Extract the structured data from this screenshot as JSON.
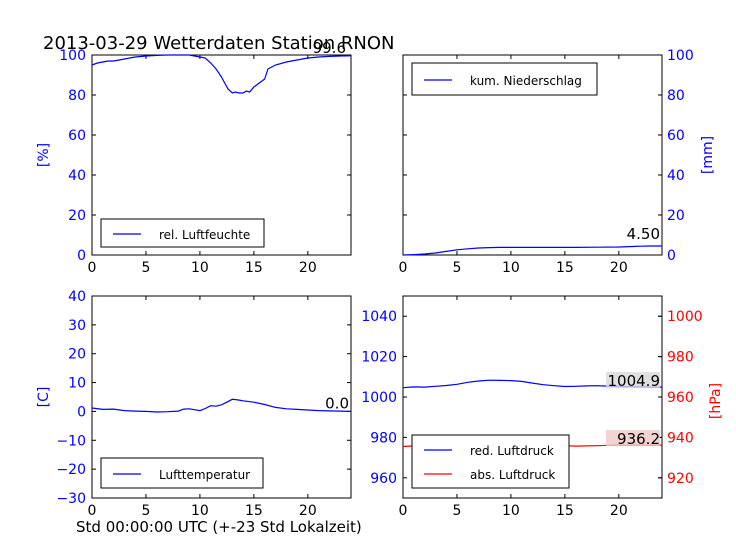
{
  "title": "2013-03-29 Wetterdaten Station RNON",
  "footer_xlabel": "Std 00:00:00 UTC (+-23 Std Lokalzeit)",
  "colors": {
    "blue": "#0000ff",
    "red": "#ff0000",
    "axis": "#000000",
    "label_bg": "#d8d8d8",
    "label_bg_red": "#f0c8c8"
  },
  "chart_data": [
    {
      "id": "humidity",
      "type": "line",
      "xlim": [
        0,
        24
      ],
      "ylim": [
        0,
        100
      ],
      "xticks": [
        "0",
        "5",
        "10",
        "15",
        "20"
      ],
      "yticks": [
        "0",
        "20",
        "40",
        "60",
        "80",
        "100"
      ],
      "ylabel": "[%]",
      "yaxis_side": "left",
      "ytick_color": "#0000ff",
      "legend_position": "lower-left",
      "last_value_label": "99.6",
      "series": [
        {
          "name": "rel. Luftfeuchte",
          "color": "#0000ff",
          "x": [
            0,
            0.5,
            1,
            1.5,
            2,
            3,
            4,
            5,
            6,
            7,
            8,
            9,
            9.5,
            10,
            10.5,
            11,
            11.5,
            12,
            12.3,
            12.6,
            13,
            13.3,
            13.6,
            14,
            14.3,
            14.6,
            15,
            15.5,
            16,
            16.3,
            17,
            18,
            19,
            20,
            21,
            22,
            23,
            24
          ],
          "y": [
            95,
            96,
            96.5,
            97,
            97,
            98,
            99,
            99.5,
            99.8,
            100,
            100,
            100,
            99.5,
            99,
            98.5,
            96,
            93,
            89,
            86,
            83,
            81,
            81.5,
            81,
            81,
            82,
            81.5,
            84,
            86,
            88,
            93,
            95,
            96.5,
            97.5,
            98.5,
            99,
            99.3,
            99.5,
            99.6
          ]
        }
      ]
    },
    {
      "id": "precipitation",
      "type": "line",
      "xlim": [
        0,
        24
      ],
      "ylim": [
        0,
        100
      ],
      "xticks": [
        "0",
        "5",
        "10",
        "15",
        "20"
      ],
      "yticks": [
        "0",
        "20",
        "40",
        "60",
        "80",
        "100"
      ],
      "ylabel": "[mm]",
      "yaxis_side": "right",
      "ytick_color": "#0000ff",
      "legend_position": "upper-left",
      "last_value_label": "4.50",
      "series": [
        {
          "name": "kum. Niederschlag",
          "color": "#0000ff",
          "x": [
            0,
            1,
            2,
            3,
            4,
            5,
            6,
            7,
            8,
            9,
            10,
            12,
            14,
            16,
            18,
            20,
            21,
            22,
            23,
            24
          ],
          "y": [
            0,
            0.2,
            0.5,
            1,
            1.8,
            2.6,
            3.1,
            3.5,
            3.7,
            3.8,
            3.8,
            3.8,
            3.8,
            3.8,
            3.9,
            4.0,
            4.2,
            4.4,
            4.5,
            4.5
          ]
        }
      ]
    },
    {
      "id": "temperature",
      "type": "line",
      "xlim": [
        0,
        24
      ],
      "ylim": [
        -30,
        40
      ],
      "xticks": [
        "0",
        "5",
        "10",
        "15",
        "20"
      ],
      "yticks": [
        "−30",
        "−20",
        "−10",
        "0",
        "10",
        "20",
        "30",
        "40"
      ],
      "ylabel": "[C]",
      "yaxis_side": "left",
      "ytick_color": "#0000ff",
      "legend_position": "lower-left",
      "last_value_label": "0.0",
      "series": [
        {
          "name": "Lufttemperatur",
          "color": "#0000ff",
          "x": [
            0,
            1,
            2,
            3,
            4,
            5,
            6,
            7,
            8,
            8.5,
            9,
            9.5,
            10,
            10.5,
            11,
            11.5,
            12,
            12.5,
            13,
            13.5,
            14,
            15,
            16,
            17,
            18,
            19,
            20,
            21,
            22,
            23,
            24
          ],
          "y": [
            1.2,
            0.7,
            0.8,
            0.3,
            0.1,
            0,
            -0.2,
            -0.1,
            0.1,
            0.8,
            0.9,
            0.6,
            0.3,
            1.0,
            2.0,
            1.8,
            2.3,
            3.2,
            4.2,
            4.0,
            3.7,
            3.2,
            2.4,
            1.4,
            0.9,
            0.7,
            0.5,
            0.3,
            0.2,
            0.1,
            0.0
          ]
        }
      ]
    },
    {
      "id": "pressure",
      "type": "line",
      "xlim": [
        0,
        24
      ],
      "ylim": [
        950,
        1050
      ],
      "ylim_right": [
        910,
        1010
      ],
      "xticks": [
        "0",
        "5",
        "10",
        "15",
        "20"
      ],
      "yticks": [
        "960",
        "980",
        "1000",
        "1020",
        "1040"
      ],
      "yticks_right": [
        "920",
        "940",
        "960",
        "980",
        "1000"
      ],
      "ylabel": "",
      "ylabel_right": "[hPa]",
      "ytick_color": "#0000ff",
      "ytick_color_right": "#ff0000",
      "legend_position": "lower-left",
      "series": [
        {
          "name": "red. Luftdruck",
          "color": "#0000ff",
          "axis": "left",
          "last_value_label": "1004.9",
          "x": [
            0,
            1,
            2,
            3,
            4,
            5,
            6,
            7,
            8,
            9,
            10,
            11,
            12,
            13,
            14,
            15,
            16,
            17,
            18,
            19,
            20,
            21,
            22,
            23,
            24
          ],
          "y": [
            1004.6,
            1005,
            1004.9,
            1005.3,
            1005.7,
            1006.3,
            1007.3,
            1007.9,
            1008.3,
            1008.2,
            1008.1,
            1007.7,
            1006.9,
            1006.1,
            1005.6,
            1005.2,
            1005.3,
            1005.5,
            1005.6,
            1005.4,
            1005.2,
            1005.1,
            1005,
            1004.9,
            1004.9
          ]
        },
        {
          "name": "abs. Luftdruck",
          "color": "#ff0000",
          "axis": "right",
          "last_value_label": "936.2",
          "x": [
            0,
            1,
            2,
            3,
            4,
            5,
            6,
            7,
            8,
            9,
            10,
            11,
            12,
            13,
            14,
            15,
            16,
            17,
            18,
            19,
            20,
            21,
            22,
            23,
            24
          ],
          "y": [
            935.5,
            935.8,
            935.4,
            935.9,
            936.2,
            937.1,
            937.9,
            938.6,
            939.1,
            938.9,
            938.8,
            938.6,
            937.7,
            937.2,
            936.7,
            935.9,
            935.7,
            935.8,
            935.9,
            936.1,
            936.2,
            936.1,
            936.2,
            936.2,
            936.2
          ]
        }
      ]
    }
  ]
}
